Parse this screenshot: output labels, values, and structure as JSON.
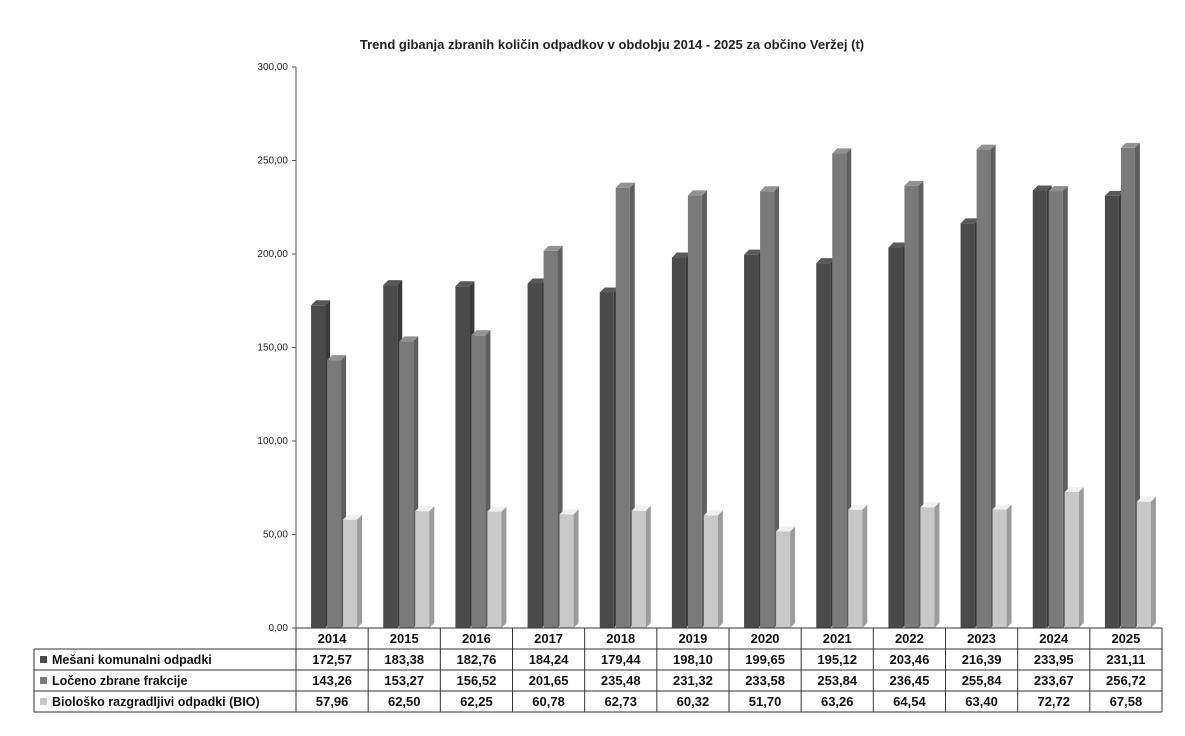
{
  "chart_data": {
    "type": "bar",
    "title": "Trend gibanja zbranih količin odpadkov v obdobju 2014 - 2025 za občino Veržej (t)",
    "categories": [
      "2014",
      "2015",
      "2016",
      "2017",
      "2018",
      "2019",
      "2020",
      "2021",
      "2022",
      "2023",
      "2024",
      "2025"
    ],
    "series": [
      {
        "name": "Mešani komunalni odpadki",
        "values": [
          172.57,
          183.38,
          182.76,
          184.24,
          179.44,
          198.1,
          199.65,
          195.12,
          203.46,
          216.39,
          233.95,
          231.11
        ],
        "labels": [
          "172,57",
          "183,38",
          "182,76",
          "184,24",
          "179,44",
          "198,10",
          "199,65",
          "195,12",
          "203,46",
          "216,39",
          "233,95",
          "231,11"
        ],
        "color": "#4a4a4a"
      },
      {
        "name": "Ločeno zbrane frakcije",
        "values": [
          143.26,
          153.27,
          156.52,
          201.65,
          235.48,
          231.32,
          233.58,
          253.84,
          236.45,
          255.84,
          233.67,
          256.72
        ],
        "labels": [
          "143,26",
          "153,27",
          "156,52",
          "201,65",
          "235,48",
          "231,32",
          "233,58",
          "253,84",
          "236,45",
          "255,84",
          "233,67",
          "256,72"
        ],
        "color": "#7a7a7a"
      },
      {
        "name": "Biološko razgradljivi odpadki (BIO)",
        "values": [
          57.96,
          62.5,
          62.25,
          60.78,
          62.73,
          60.32,
          51.7,
          63.26,
          64.54,
          63.4,
          72.72,
          67.58
        ],
        "labels": [
          "57,96",
          "62,50",
          "62,25",
          "60,78",
          "62,73",
          "60,32",
          "51,70",
          "63,26",
          "64,54",
          "63,40",
          "72,72",
          "67,58"
        ],
        "color": "#c8c8c8"
      }
    ],
    "ylim": [
      0,
      300
    ],
    "yticks": [
      "0,00",
      "50,00",
      "100,00",
      "150,00",
      "200,00",
      "250,00",
      "300,00"
    ],
    "legend": "data-table-below",
    "grid": false
  }
}
